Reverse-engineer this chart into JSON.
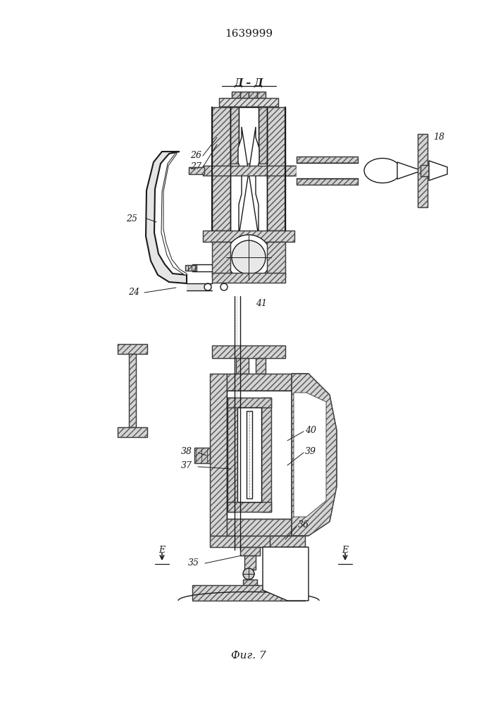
{
  "title": "1639999",
  "background": "#ffffff",
  "line_color": "#1a1a1a",
  "fig_caption": "Фиг. 7",
  "section_label": "Д – Д"
}
